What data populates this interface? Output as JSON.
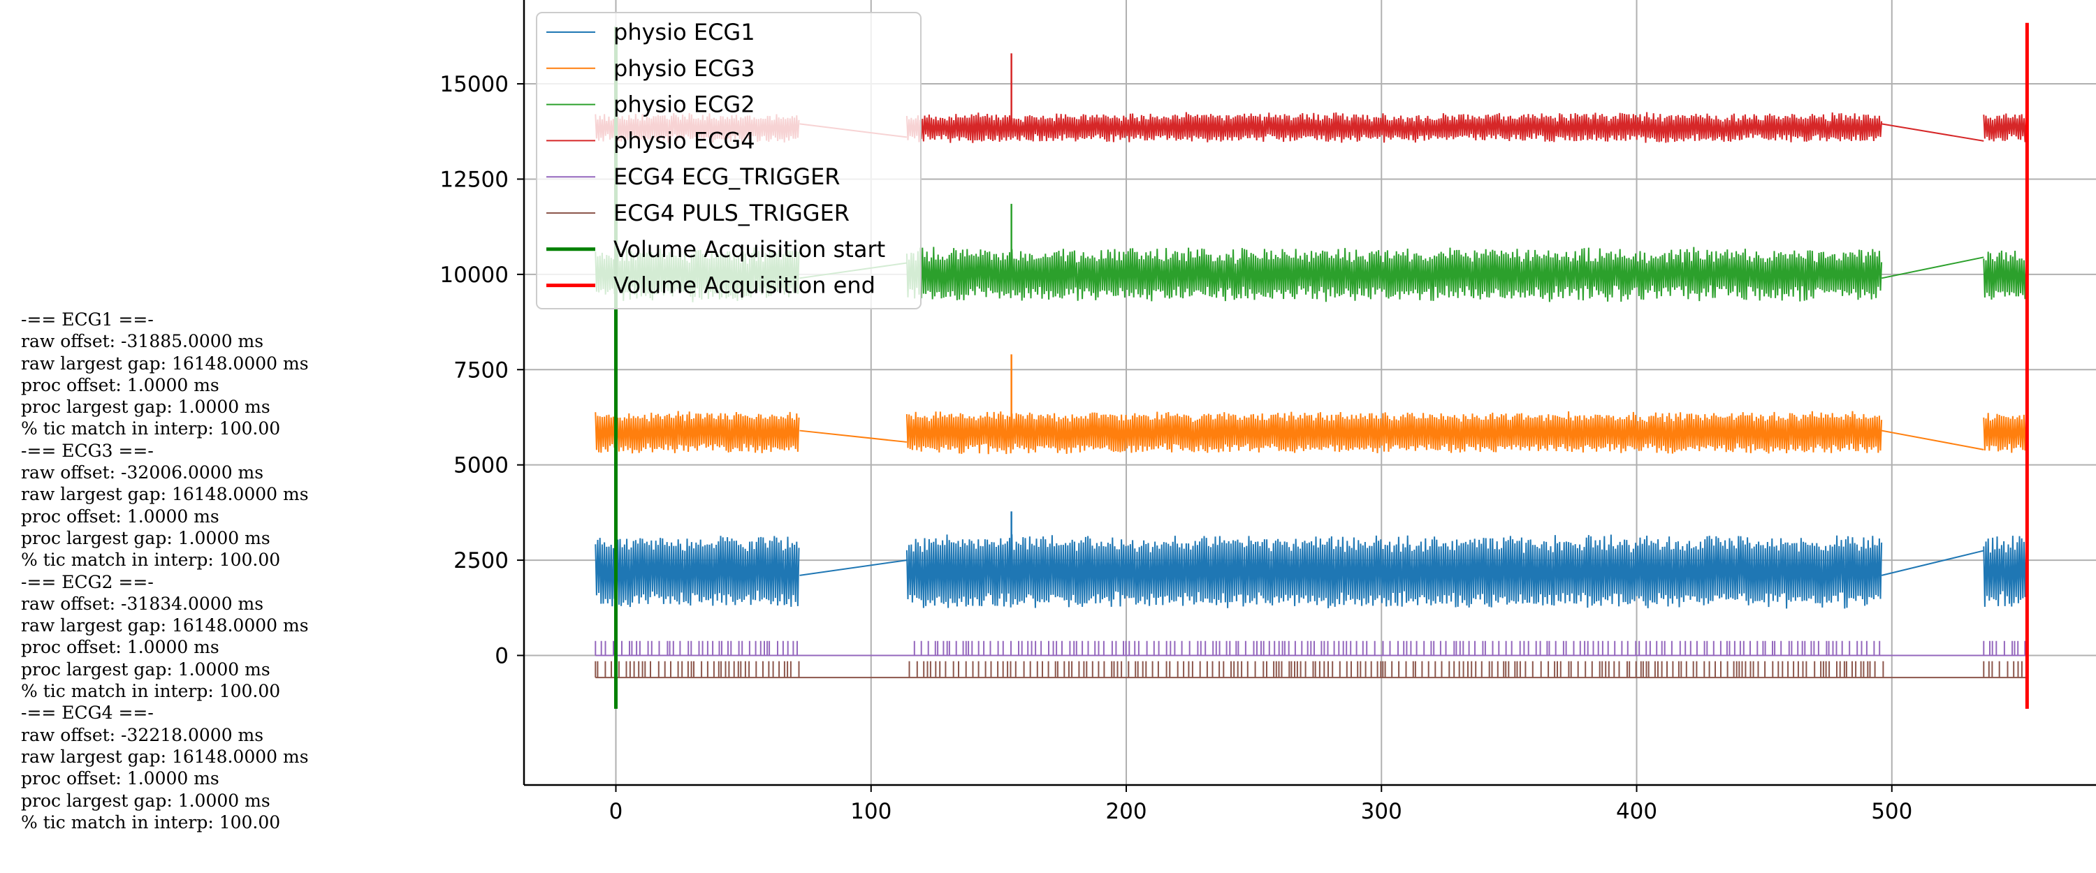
{
  "stats_lines": [
    "-== ECG1 ==-",
    "raw offset: -31885.0000 ms",
    "raw largest gap: 16148.0000 ms",
    "proc offset: 1.0000 ms",
    "proc largest gap: 1.0000 ms",
    "% tic match in interp: 100.00",
    "-== ECG3 ==-",
    "raw offset: -32006.0000 ms",
    "raw largest gap: 16148.0000 ms",
    "proc offset: 1.0000 ms",
    "proc largest gap: 1.0000 ms",
    "% tic match in interp: 100.00",
    "-== ECG2 ==-",
    "raw offset: -31834.0000 ms",
    "raw largest gap: 16148.0000 ms",
    "proc offset: 1.0000 ms",
    "proc largest gap: 1.0000 ms",
    "% tic match in interp: 100.00",
    "-== ECG4 ==-",
    "raw offset: -32218.0000 ms",
    "raw largest gap: 16148.0000 ms",
    "proc offset: 1.0000 ms",
    "proc largest gap: 1.0000 ms",
    "% tic match in interp: 100.00"
  ],
  "chart_data": {
    "type": "line",
    "title": "",
    "xlabel": "",
    "ylabel": "",
    "xlim": [
      -36,
      580
    ],
    "ylim": [
      -3400,
      17200
    ],
    "xticks": [
      0,
      100,
      200,
      300,
      400,
      500
    ],
    "yticks": [
      0,
      2500,
      5000,
      7500,
      10000,
      12500,
      15000
    ],
    "grid": true,
    "legend_position": "upper-left",
    "series": [
      {
        "name": "physio ECG1",
        "color": "#1f77b4",
        "kind": "ecg",
        "baseline": 2200,
        "amplitude": 850,
        "noise": 150,
        "segments": [
          [
            -8,
            72
          ],
          [
            114,
            496
          ],
          [
            536,
            553
          ]
        ],
        "gap_lines": [
          [
            [
              72,
              2100
            ],
            [
              114,
              2500
            ]
          ],
          [
            [
              496,
              2100
            ],
            [
              536,
              2750
            ]
          ]
        ],
        "spikes": [
          [
            155,
            3780
          ]
        ]
      },
      {
        "name": "physio ECG3",
        "color": "#ff7f0e",
        "kind": "ecg",
        "baseline": 5850,
        "amplitude": 480,
        "noise": 90,
        "segments": [
          [
            -8,
            72
          ],
          [
            114,
            496
          ],
          [
            536,
            553
          ]
        ],
        "gap_lines": [
          [
            [
              72,
              5900
            ],
            [
              114,
              5600
            ]
          ],
          [
            [
              496,
              5900
            ],
            [
              536,
              5400
            ]
          ]
        ],
        "spikes": [
          [
            155,
            7900
          ]
        ]
      },
      {
        "name": "physio ECG2",
        "color": "#2ca02c",
        "kind": "ecg",
        "baseline": 10000,
        "amplitude": 580,
        "noise": 160,
        "segments": [
          [
            -8,
            72
          ],
          [
            114,
            496
          ],
          [
            536,
            553
          ]
        ],
        "gap_lines": [
          [
            [
              72,
              9900
            ],
            [
              114,
              10300
            ]
          ],
          [
            [
              496,
              9900
            ],
            [
              536,
              10450
            ]
          ]
        ],
        "spikes": [
          [
            155,
            11850
          ]
        ]
      },
      {
        "name": "physio ECG4",
        "color": "#d62728",
        "kind": "ecg",
        "baseline": 13850,
        "amplitude": 320,
        "noise": 90,
        "segments": [
          [
            -8,
            72
          ],
          [
            114,
            496
          ],
          [
            536,
            553
          ]
        ],
        "gap_lines": [
          [
            [
              72,
              13950
            ],
            [
              114,
              13600
            ]
          ],
          [
            [
              496,
              13950
            ],
            [
              536,
              13500
            ]
          ]
        ],
        "spikes": [
          [
            155,
            15800
          ]
        ]
      },
      {
        "name": "ECG4 ECG_TRIGGER",
        "color": "#9467bd",
        "kind": "trigger",
        "baseline": 0,
        "pulse_top": 380,
        "segments": [
          [
            -8,
            72
          ],
          [
            117,
            496
          ],
          [
            536,
            553
          ]
        ]
      },
      {
        "name": "ECG4 PULS_TRIGGER",
        "color": "#8c564b",
        "kind": "trigger",
        "baseline": -580,
        "pulse_top": -150,
        "segments": [
          [
            -8,
            74
          ],
          [
            115,
            498
          ],
          [
            536,
            553
          ]
        ]
      }
    ],
    "markers": [
      {
        "name": "Volume Acquisition start",
        "color": "#008000",
        "x": 0,
        "y_range": [
          -1400,
          16500
        ]
      },
      {
        "name": "Volume Acquisition end",
        "color": "#ff0000",
        "x": 553,
        "y_range": [
          -1400,
          16600
        ]
      }
    ]
  }
}
